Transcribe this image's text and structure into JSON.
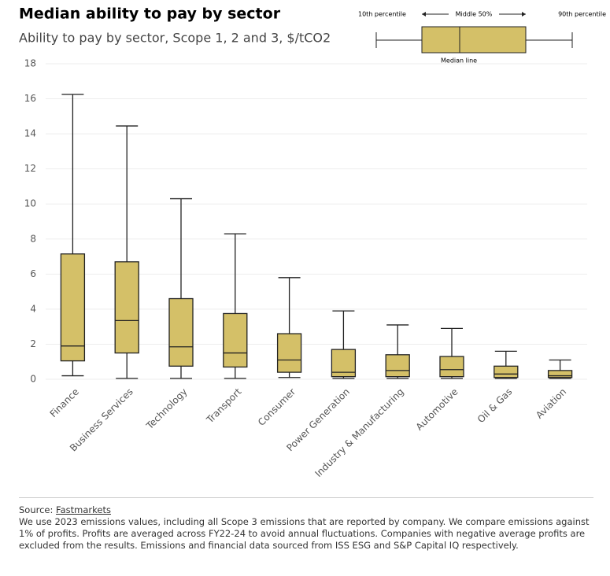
{
  "chart_data": {
    "type": "box",
    "title": "Median ability to pay by sector",
    "subtitle": "Ability to pay by sector, Scope 1, 2 and 3, $/tCO2",
    "categories": [
      "Finance",
      "Business Services",
      "Technology",
      "Transport",
      "Consumer",
      "Power Generation",
      "Industry & Manufacturing",
      "Automotive",
      "Oil & Gas",
      "Aviation"
    ],
    "low": [
      0.2,
      0.05,
      0.05,
      0.05,
      0.1,
      0.05,
      0.05,
      0.05,
      0.05,
      0.05
    ],
    "q1": [
      1.05,
      1.5,
      0.75,
      0.7,
      0.4,
      0.15,
      0.15,
      0.15,
      0.1,
      0.1
    ],
    "median": [
      1.9,
      3.35,
      1.85,
      1.5,
      1.1,
      0.4,
      0.5,
      0.55,
      0.3,
      0.2
    ],
    "q3": [
      7.15,
      6.7,
      4.6,
      3.75,
      2.6,
      1.7,
      1.4,
      1.3,
      0.75,
      0.5
    ],
    "high": [
      16.25,
      14.45,
      10.3,
      8.3,
      5.8,
      3.9,
      3.1,
      2.9,
      1.6,
      1.1
    ],
    "color": "#d4c068",
    "ylim": [
      0,
      18
    ],
    "yticks": [
      0,
      2,
      4,
      6,
      8,
      10,
      12,
      14,
      16,
      18
    ],
    "grid": true,
    "legend": {
      "low": "10th percentile",
      "middle": "Middle 50%",
      "high": "90th percentile",
      "median": "Median line"
    }
  },
  "footer": {
    "source_label": "Source:",
    "source": "Fastmarkets",
    "note": "We use 2023 emissions values, including all Scope 3 emissions that are reported by company. We compare emissions against 1% of profits. Profits are averaged across FY22-24 to avoid annual fluctuations. Companies with negative average profits are excluded from the results. Emissions and financial data sourced from ISS ESG and S&P Capital IQ respectively."
  }
}
